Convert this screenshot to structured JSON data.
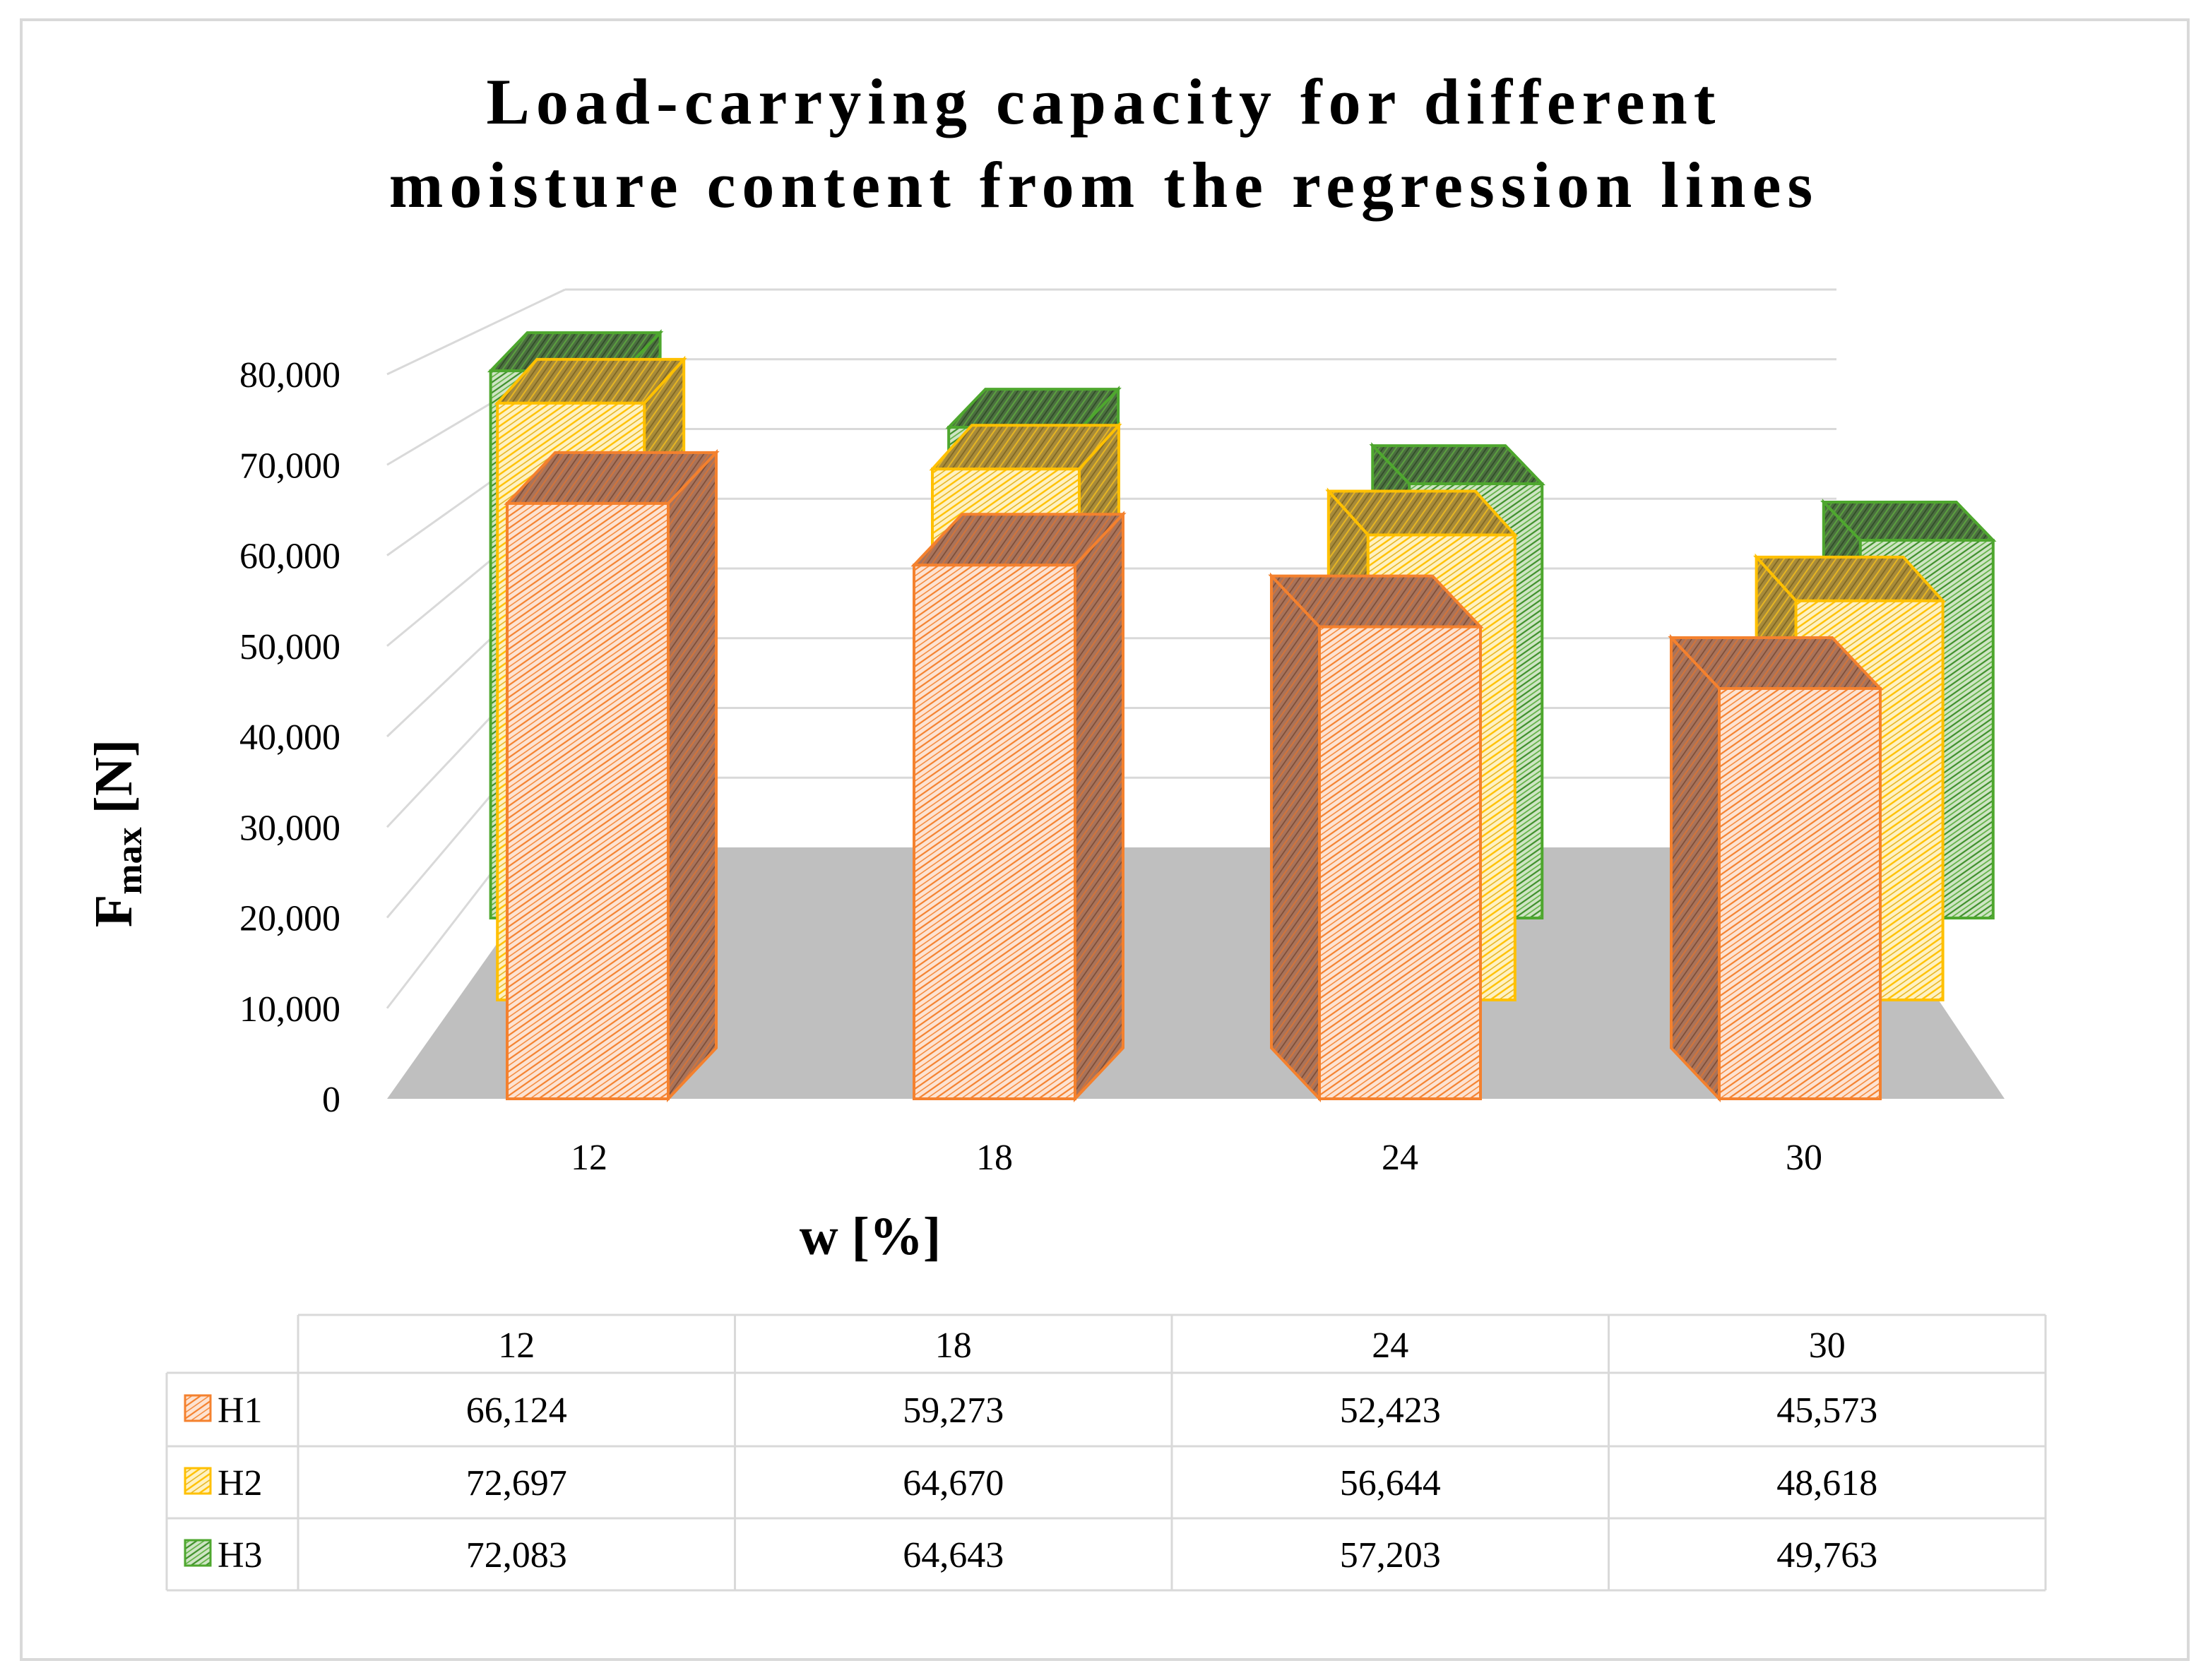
{
  "chart_data": {
    "type": "bar",
    "subtype": "3d-clustered-bar-with-data-table",
    "title_lines": [
      "Load-carrying capacity for different",
      "moisture content from the regression lines"
    ],
    "xlabel": "w [%]",
    "ylabel_main": "F",
    "ylabel_sub": "max",
    "ylabel_unit": " [N]",
    "categories": [
      "12",
      "18",
      "24",
      "30"
    ],
    "y_ticks": [
      "0",
      "10,000",
      "20,000",
      "30,000",
      "40,000",
      "50,000",
      "60,000",
      "70,000",
      "80,000"
    ],
    "ylim": [
      0,
      80000
    ],
    "grid": true,
    "series": [
      {
        "name": "H1",
        "values": [
          66124,
          59273,
          52423,
          45573
        ],
        "labels": [
          "66,124",
          "59,273",
          "52,423",
          "45,573"
        ],
        "color": "#F4812E",
        "fill": "#FCD7BE"
      },
      {
        "name": "H2",
        "values": [
          72697,
          64670,
          56644,
          48618
        ],
        "labels": [
          "72,697",
          "64,670",
          "56,644",
          "48,618"
        ],
        "color": "#FFC000",
        "fill": "#FFE58A"
      },
      {
        "name": "H3",
        "values": [
          72083,
          64643,
          57203,
          49763
        ],
        "labels": [
          "72,083",
          "64,643",
          "57,203",
          "49,763"
        ],
        "color": "#4EA72E",
        "fill": "#9CCB86"
      }
    ],
    "legend": "data-table"
  }
}
